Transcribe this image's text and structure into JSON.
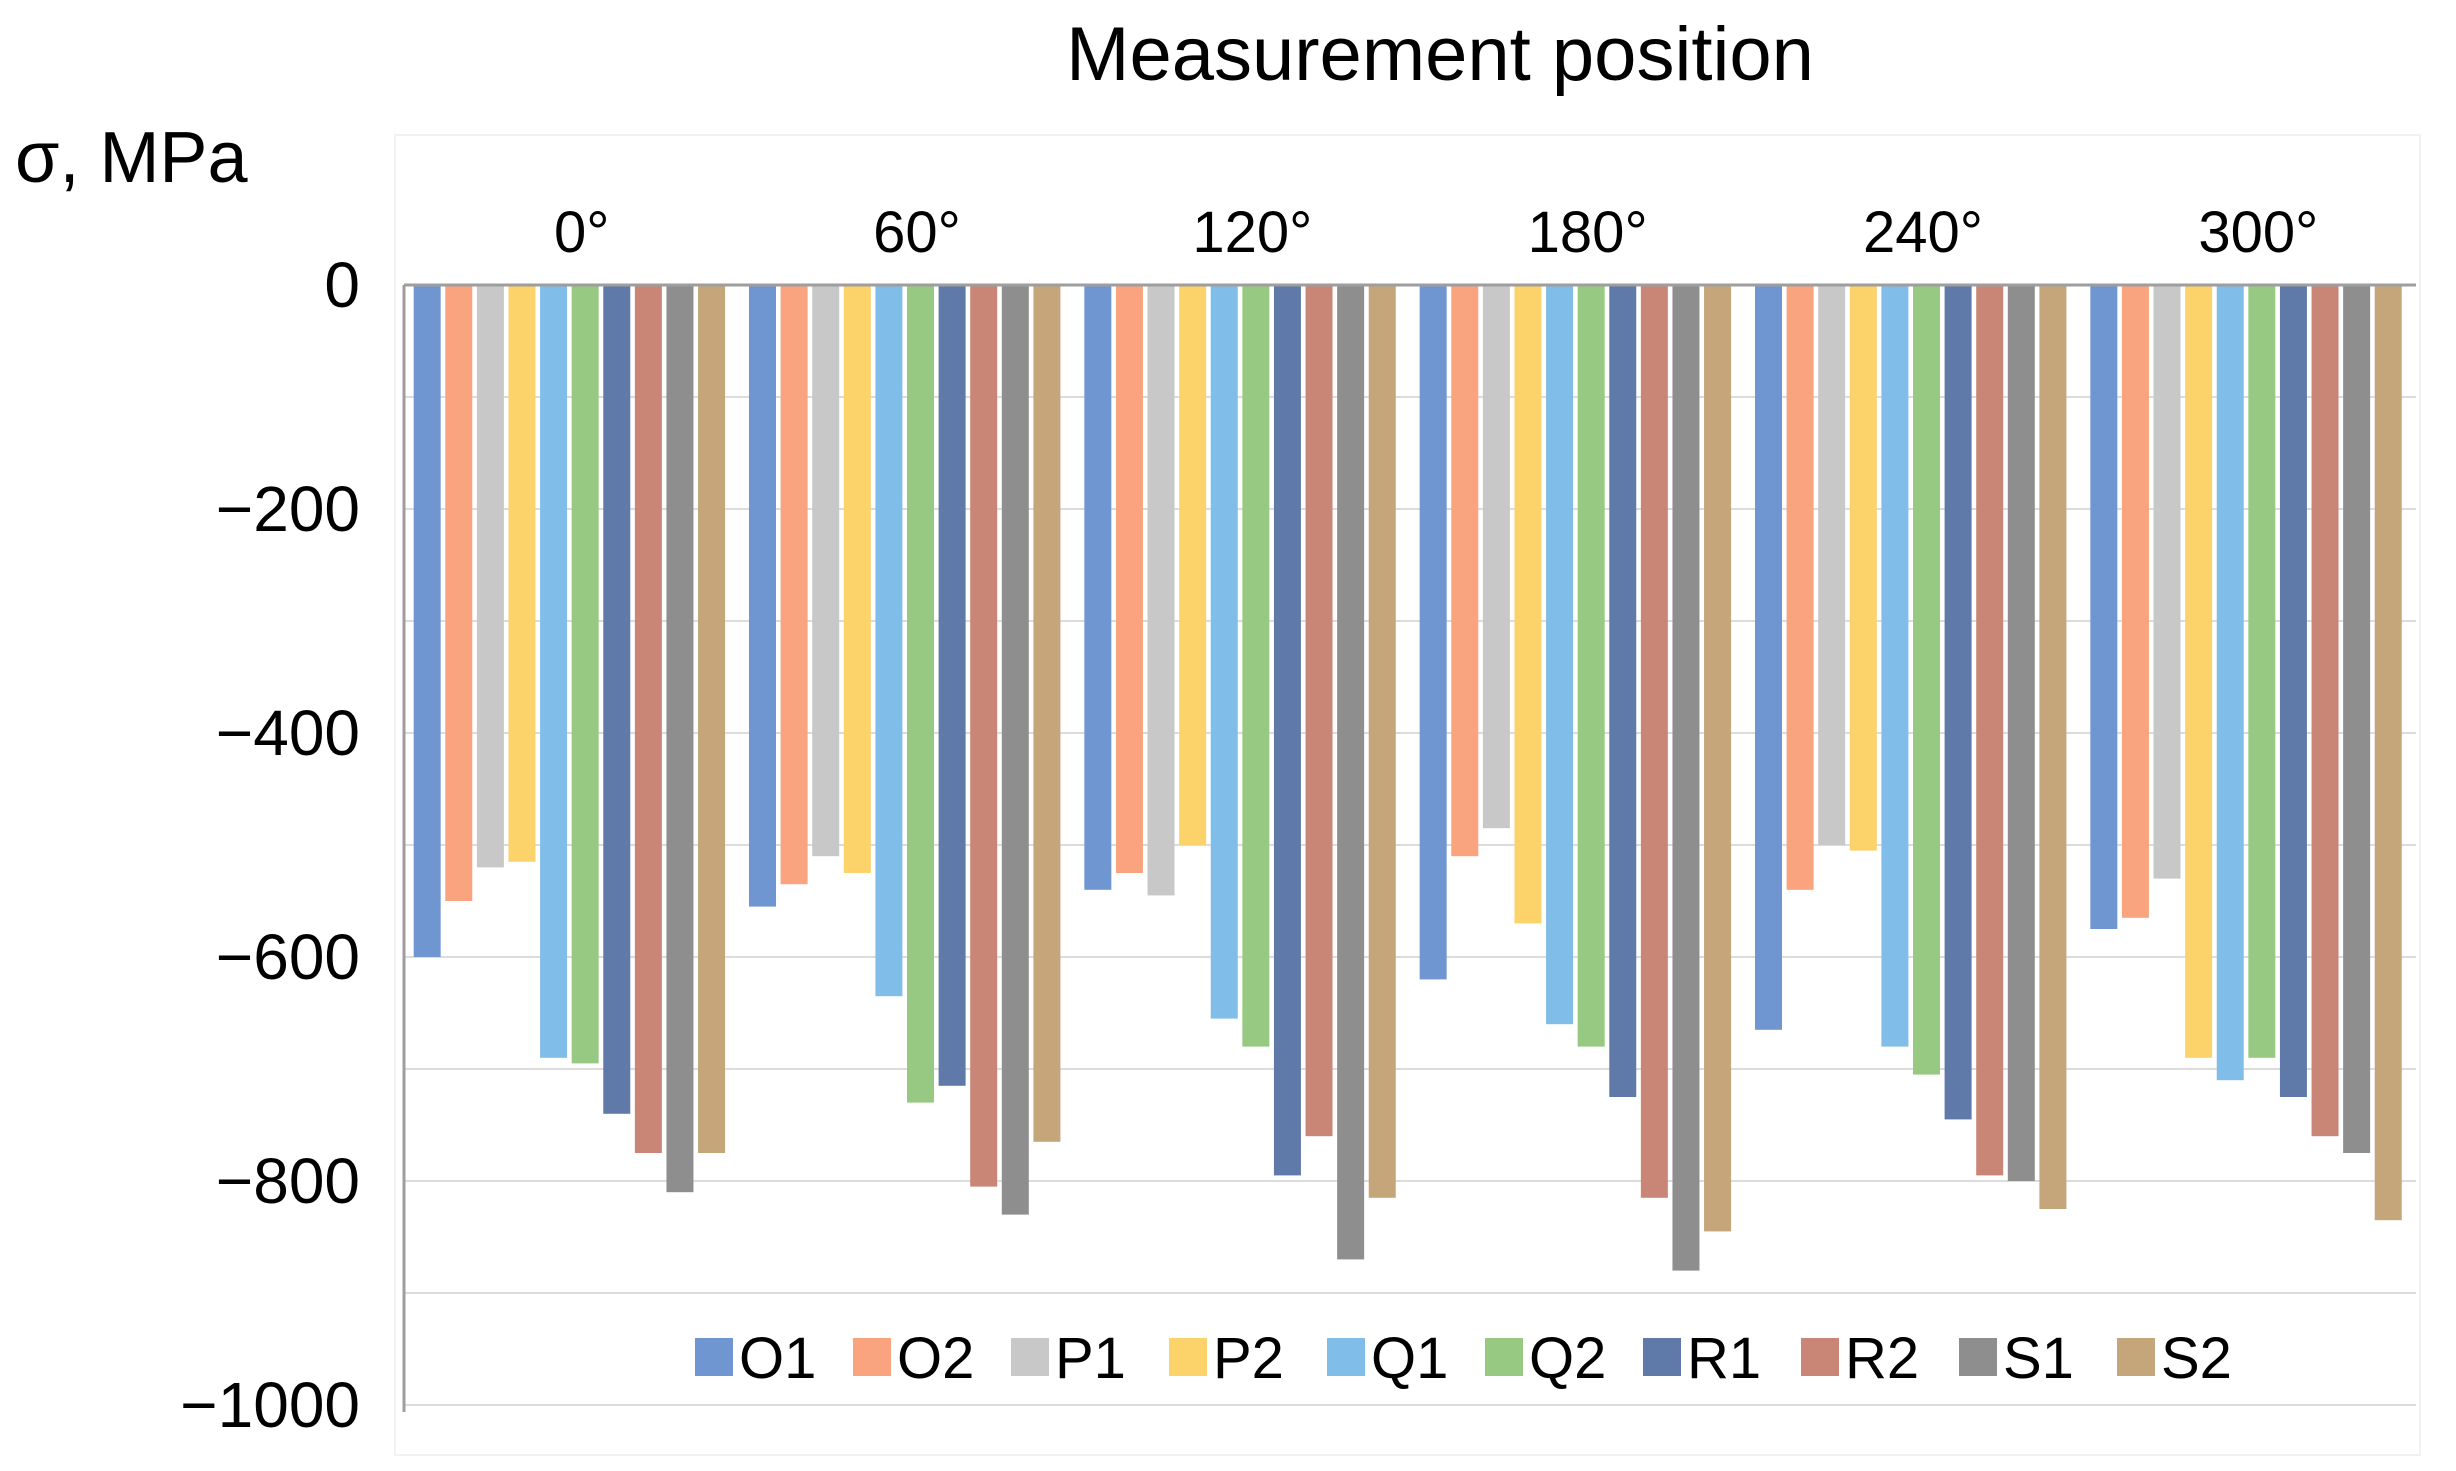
{
  "chart_data": {
    "type": "bar",
    "title": "Measurement position",
    "xlabel": "",
    "ylabel": "σ, MPa",
    "ylim": [
      -1000,
      0
    ],
    "yticks": [
      0,
      -200,
      -400,
      -600,
      -800,
      -1000
    ],
    "ytick_labels": [
      "0",
      "−200",
      "−400",
      "−600",
      "−800",
      "−1000"
    ],
    "grid": true,
    "legend_position": "bottom",
    "categories": [
      "0°",
      "60°",
      "120°",
      "180°",
      "240°",
      "300°"
    ],
    "series": [
      {
        "name": "O1",
        "color": "#7096d1",
        "values": [
          -600,
          -555,
          -540,
          -620,
          -665,
          -575
        ]
      },
      {
        "name": "O2",
        "color": "#f9a47e",
        "values": [
          -550,
          -535,
          -525,
          -510,
          -540,
          -565
        ]
      },
      {
        "name": "P1",
        "color": "#c8c8c8",
        "values": [
          -520,
          -510,
          -545,
          -485,
          -500,
          -530
        ]
      },
      {
        "name": "P2",
        "color": "#fcd26a",
        "values": [
          -515,
          -525,
          -500,
          -570,
          -505,
          -690
        ]
      },
      {
        "name": "Q1",
        "color": "#80bde8",
        "values": [
          -690,
          -635,
          -655,
          -660,
          -680,
          -710
        ]
      },
      {
        "name": "Q2",
        "color": "#98c983",
        "values": [
          -695,
          -730,
          -680,
          -680,
          -705,
          -690
        ]
      },
      {
        "name": "R1",
        "color": "#5f7aa8",
        "values": [
          -740,
          -715,
          -795,
          -725,
          -745,
          -725
        ]
      },
      {
        "name": "R2",
        "color": "#c98677",
        "values": [
          -775,
          -805,
          -760,
          -815,
          -795,
          -760
        ]
      },
      {
        "name": "S1",
        "color": "#8e8e8e",
        "values": [
          -810,
          -830,
          -870,
          -880,
          -800,
          -775
        ]
      },
      {
        "name": "S2",
        "color": "#c5a57a",
        "values": [
          -775,
          -765,
          -815,
          -845,
          -825,
          -835
        ]
      }
    ]
  }
}
